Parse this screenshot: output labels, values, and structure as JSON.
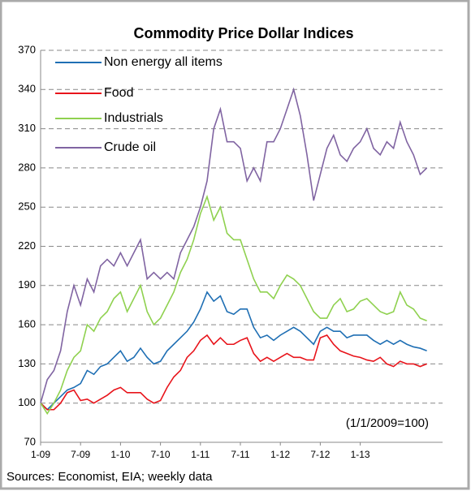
{
  "chart_data": {
    "type": "line",
    "title": "Commodity Price Dollar Indices",
    "annotation": "(1/1/2009=100)",
    "source": "Sources: Economist, EIA; weekly data",
    "categories": [
      "1-09",
      null,
      null,
      null,
      null,
      null,
      "7-09",
      null,
      null,
      null,
      null,
      null,
      "1-10",
      null,
      null,
      null,
      null,
      null,
      "7-10",
      null,
      null,
      null,
      null,
      null,
      "1-11",
      null,
      null,
      null,
      null,
      null,
      "7-11",
      null,
      null,
      null,
      null,
      null,
      "1-12",
      null,
      null,
      null,
      null,
      null,
      "7-12",
      null,
      null,
      null,
      null,
      null,
      "1-13",
      null,
      null,
      null,
      null,
      null,
      null,
      null,
      null,
      null,
      null
    ],
    "ylim": [
      70,
      370
    ],
    "yticks": [
      70,
      100,
      130,
      160,
      190,
      220,
      250,
      280,
      310,
      340,
      370
    ],
    "grid": true,
    "legend": "top-left",
    "series": [
      {
        "name": "Non energy all items",
        "color": "#1f6fb4",
        "values": [
          100,
          95,
          100,
          105,
          110,
          112,
          115,
          125,
          122,
          128,
          130,
          135,
          140,
          132,
          135,
          142,
          135,
          130,
          132,
          140,
          145,
          150,
          155,
          162,
          172,
          185,
          178,
          182,
          170,
          168,
          172,
          172,
          158,
          150,
          152,
          148,
          152,
          155,
          158,
          155,
          150,
          145,
          155,
          158,
          155,
          155,
          150,
          152,
          152,
          152,
          148,
          145,
          148,
          145,
          148,
          145,
          143,
          142,
          140
        ]
      },
      {
        "name": "Food",
        "color": "#e8141b",
        "values": [
          100,
          95,
          95,
          100,
          108,
          110,
          102,
          103,
          100,
          103,
          106,
          110,
          112,
          108,
          108,
          108,
          103,
          100,
          102,
          112,
          120,
          125,
          135,
          140,
          148,
          152,
          145,
          150,
          145,
          145,
          148,
          150,
          138,
          132,
          135,
          132,
          135,
          138,
          135,
          135,
          133,
          133,
          150,
          152,
          145,
          140,
          138,
          136,
          135,
          133,
          132,
          135,
          130,
          128,
          132,
          130,
          130,
          128,
          130
        ]
      },
      {
        "name": "Industrials",
        "color": "#8fd14f",
        "values": [
          100,
          92,
          100,
          110,
          125,
          135,
          140,
          160,
          155,
          165,
          170,
          180,
          185,
          170,
          180,
          190,
          170,
          160,
          165,
          175,
          185,
          200,
          210,
          225,
          245,
          258,
          240,
          250,
          230,
          225,
          225,
          210,
          195,
          185,
          185,
          180,
          190,
          198,
          195,
          190,
          180,
          170,
          165,
          165,
          175,
          180,
          170,
          172,
          178,
          180,
          175,
          170,
          168,
          170,
          185,
          175,
          172,
          165,
          163
        ]
      },
      {
        "name": "Crude oil",
        "color": "#8064a2",
        "values": [
          100,
          118,
          125,
          140,
          170,
          190,
          175,
          195,
          185,
          205,
          210,
          205,
          215,
          205,
          215,
          225,
          195,
          200,
          195,
          200,
          195,
          215,
          225,
          235,
          250,
          270,
          310,
          325,
          300,
          300,
          295,
          270,
          280,
          270,
          300,
          300,
          310,
          325,
          340,
          320,
          290,
          255,
          275,
          295,
          305,
          290,
          285,
          295,
          300,
          310,
          295,
          290,
          300,
          295,
          315,
          300,
          290,
          275,
          280
        ]
      }
    ]
  }
}
